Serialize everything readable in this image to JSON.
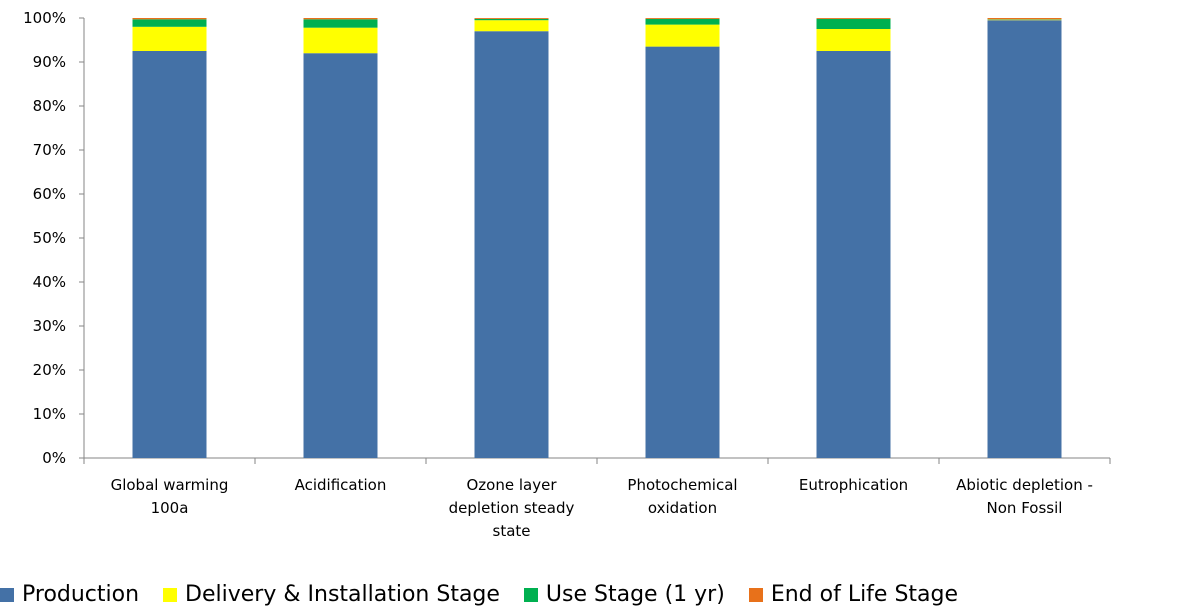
{
  "chart_data": {
    "type": "bar",
    "stacked": true,
    "percent": true,
    "categories": [
      [
        "Global warming",
        "100a"
      ],
      [
        "Acidification"
      ],
      [
        "Ozone layer",
        "depletion steady",
        "state"
      ],
      [
        "Photochemical",
        "oxidation"
      ],
      [
        "Eutrophication"
      ],
      [
        "Abiotic depletion -",
        "Non Fossil"
      ]
    ],
    "series": [
      {
        "name": "Production",
        "color": "#4471A6",
        "values": [
          92.5,
          92,
          97,
          93.5,
          92.5,
          99.5
        ]
      },
      {
        "name": "Delivery & Installation Stage",
        "color": "#FFFF00",
        "values": [
          5.5,
          5.8,
          2.5,
          5,
          5,
          0.1
        ]
      },
      {
        "name": "Use Stage (1 yr)",
        "color": "#00B050",
        "values": [
          1.7,
          1.9,
          0.3,
          1.3,
          2.3,
          0.1
        ]
      },
      {
        "name": "End of Life Stage",
        "color": "#E8711A",
        "values": [
          0.3,
          0.3,
          0.2,
          0.2,
          0.2,
          0.3
        ]
      }
    ],
    "ylim": [
      0,
      100
    ],
    "yticks": [
      "0%",
      "10%",
      "20%",
      "30%",
      "40%",
      "50%",
      "60%",
      "70%",
      "80%",
      "90%",
      "100%"
    ],
    "grid": false,
    "legend_position": "bottom"
  }
}
